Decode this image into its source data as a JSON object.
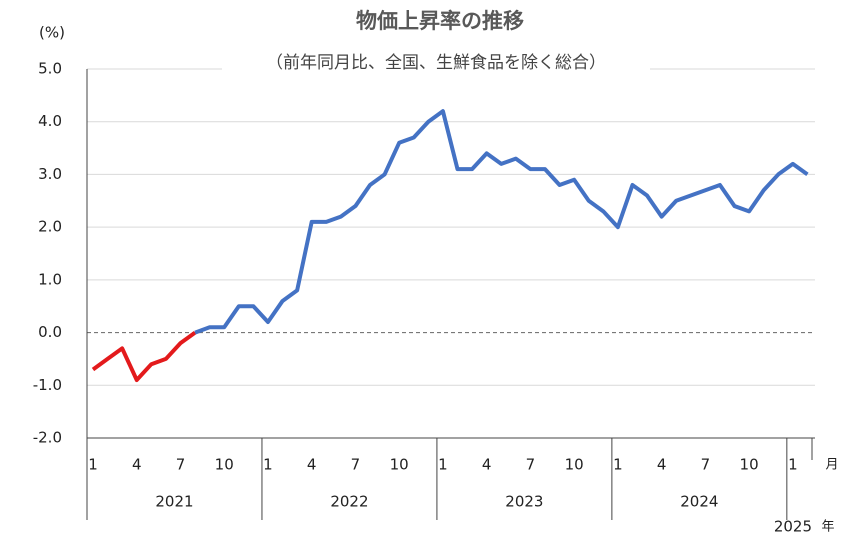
{
  "chart_data": {
    "type": "line",
    "title": "物価上昇率の推移",
    "subtitle": "（前年同月比、全国、生鮮食品を除く総合）",
    "y_unit": "(%)",
    "x_unit": "月",
    "year_unit": "年",
    "years": [
      "2021",
      "2022",
      "2023",
      "2024",
      "2025"
    ],
    "categories": [
      "1",
      null,
      null,
      "4",
      null,
      null,
      "7",
      null,
      null,
      "10",
      null,
      null,
      "1",
      null,
      null,
      "4",
      null,
      null,
      "7",
      null,
      null,
      "10",
      null,
      null,
      "1",
      null,
      null,
      "4",
      null,
      null,
      "7",
      null,
      null,
      "10",
      null,
      null,
      "1",
      null,
      null,
      "4",
      null,
      null,
      "7",
      null,
      null,
      "10",
      null,
      null,
      "1",
      null
    ],
    "series": [
      {
        "color": "#e31a1c",
        "values": [
          -0.7,
          -0.5,
          -0.3,
          -0.9,
          -0.6,
          -0.5,
          -0.2,
          0.0,
          null,
          null,
          null,
          null,
          null,
          null,
          null,
          null,
          null,
          null,
          null,
          null,
          null,
          null,
          null,
          null,
          null,
          null,
          null,
          null,
          null,
          null,
          null,
          null,
          null,
          null,
          null,
          null,
          null,
          null,
          null,
          null,
          null,
          null,
          null,
          null,
          null,
          null,
          null,
          null,
          null,
          null
        ]
      },
      {
        "color": "#4472c4",
        "values": [
          null,
          null,
          null,
          null,
          null,
          null,
          null,
          0.0,
          0.1,
          0.1,
          0.5,
          0.5,
          0.2,
          0.6,
          0.8,
          2.1,
          2.1,
          2.2,
          2.4,
          2.8,
          3.0,
          3.6,
          3.7,
          4.0,
          4.2,
          3.1,
          3.1,
          3.4,
          3.2,
          3.3,
          3.1,
          3.1,
          2.8,
          2.9,
          2.5,
          2.3,
          2.0,
          2.8,
          2.6,
          2.2,
          2.5,
          2.6,
          2.7,
          2.8,
          2.4,
          2.3,
          2.7,
          3.0,
          3.2,
          3.0
        ]
      }
    ],
    "ylim": [
      -2,
      5
    ],
    "yticks": [
      {
        "value": -2,
        "label": "-2.0"
      },
      {
        "value": -1,
        "label": "-1.0"
      },
      {
        "value": 0,
        "label": "0.0"
      },
      {
        "value": 1,
        "label": "1.0"
      },
      {
        "value": 2,
        "label": "2.0"
      },
      {
        "value": 3,
        "label": "3.0"
      },
      {
        "value": 4,
        "label": "4.0"
      },
      {
        "value": 5,
        "label": "5.0"
      }
    ],
    "grid": true
  }
}
